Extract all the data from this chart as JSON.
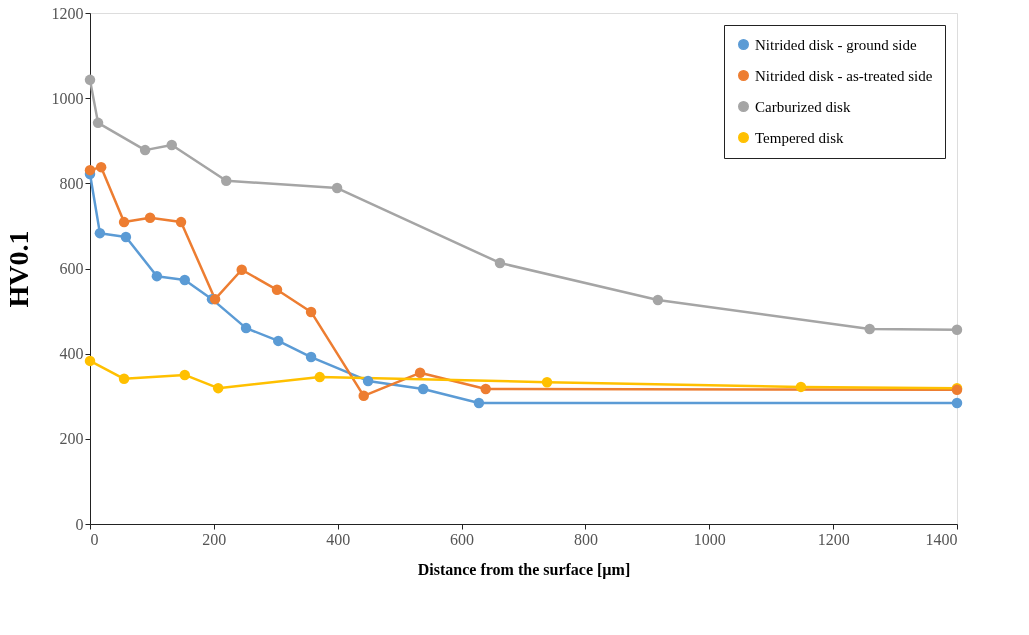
{
  "chart_data": {
    "type": "line",
    "xlabel": "Distance from the surface [µm]",
    "ylabel": "HV0.1",
    "xlim": [
      0,
      1400
    ],
    "xticks": [
      0,
      200,
      400,
      600,
      800,
      1000,
      1200,
      1400
    ],
    "ylim": [
      0,
      1200
    ],
    "yticks": [
      0,
      200,
      400,
      600,
      800,
      1000,
      1200
    ],
    "grid": false,
    "legend": "top right",
    "marker": "circle",
    "line_style": "solid",
    "series": [
      {
        "name": "Nitrided disk - ground side",
        "color": "#5b9bd5",
        "x": [
          0,
          16,
          58,
          108,
          153,
          197,
          252,
          304,
          357,
          449,
          538,
          628,
          1400
        ],
        "values": [
          822,
          683,
          674,
          582,
          573,
          528,
          460,
          430,
          392,
          336,
          317,
          284,
          284
        ]
      },
      {
        "name": "Nitrided disk - as-treated side",
        "color": "#ed7d31",
        "x": [
          0,
          18,
          55,
          97,
          147,
          202,
          245,
          302,
          357,
          442,
          533,
          639,
          1400
        ],
        "values": [
          831,
          838,
          709,
          719,
          709,
          528,
          597,
          550,
          498,
          301,
          355,
          317,
          315
        ]
      },
      {
        "name": "Carburized disk",
        "color": "#a5a5a5",
        "x": [
          0,
          13,
          89,
          132,
          220,
          399,
          662,
          917,
          1259,
          1400
        ],
        "values": [
          1043,
          942,
          878,
          890,
          806,
          789,
          613,
          526,
          458,
          456
        ]
      },
      {
        "name": "Tempered disk",
        "color": "#ffc000",
        "x": [
          0,
          55,
          153,
          207,
          371,
          738,
          1148,
          1400
        ],
        "values": [
          383,
          341,
          350,
          319,
          345,
          333,
          322,
          319
        ]
      }
    ]
  }
}
